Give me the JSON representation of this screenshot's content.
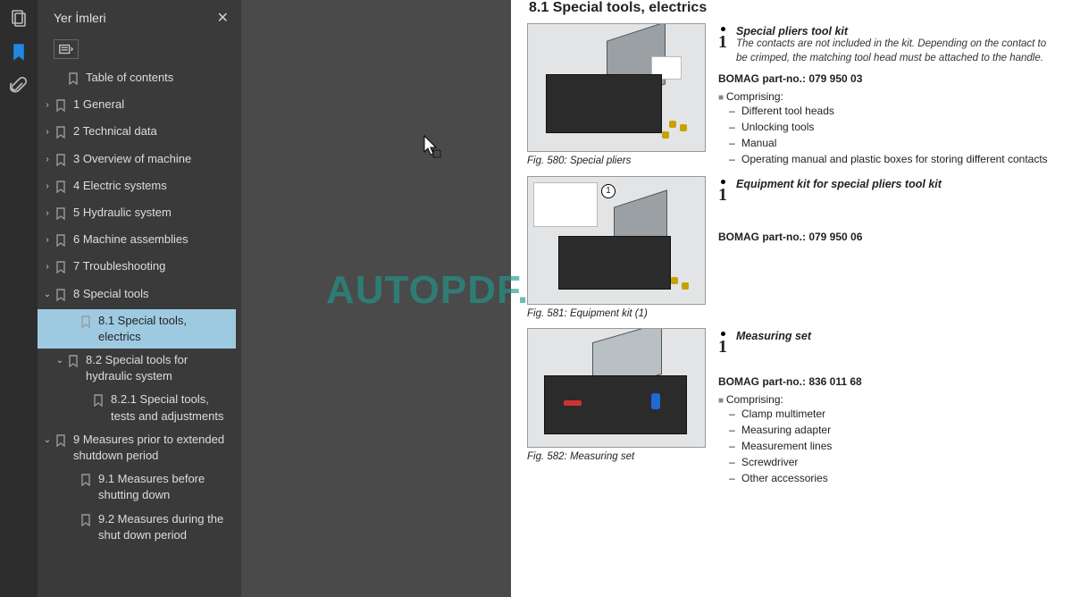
{
  "sidebar": {
    "title": "Yer İmleri",
    "bookmarks": [
      {
        "depth": 1,
        "chevron": "",
        "label": "Table of contents",
        "selected": false
      },
      {
        "depth": 0,
        "chevron": "›",
        "label": "1 General",
        "selected": false
      },
      {
        "depth": 0,
        "chevron": "›",
        "label": "2 Technical data",
        "selected": false
      },
      {
        "depth": 0,
        "chevron": "›",
        "label": "3 Overview of machine",
        "selected": false
      },
      {
        "depth": 0,
        "chevron": "›",
        "label": "4 Electric systems",
        "selected": false
      },
      {
        "depth": 0,
        "chevron": "›",
        "label": "5 Hydraulic system",
        "selected": false
      },
      {
        "depth": 0,
        "chevron": "›",
        "label": "6 Machine assemblies",
        "selected": false
      },
      {
        "depth": 0,
        "chevron": "›",
        "label": "7 Troubleshooting",
        "selected": false
      },
      {
        "depth": 0,
        "chevron": "⌄",
        "label": "8 Special tools",
        "selected": false
      },
      {
        "depth": 2,
        "chevron": "",
        "label": "8.1 Special tools, electrics",
        "selected": true
      },
      {
        "depth": 1,
        "chevron": "⌄",
        "label": "8.2 Special tools for hydraulic system",
        "selected": false
      },
      {
        "depth": 3,
        "chevron": "",
        "label": "8.2.1 Special tools, tests and adjustments",
        "selected": false
      },
      {
        "depth": 0,
        "chevron": "⌄",
        "label": "9 Measures prior to extended shutdown period",
        "selected": false
      },
      {
        "depth": 2,
        "chevron": "",
        "label": "9.1 Measures before shutting down",
        "selected": false
      },
      {
        "depth": 2,
        "chevron": "",
        "label": "9.2 Measures during the shut down period",
        "selected": false
      }
    ]
  },
  "watermark": "AUTOPDF.NET",
  "doc": {
    "heading": "8.1   Special tools, electrics",
    "sections": [
      {
        "fig_caption": "Fig.  580: Special pliers",
        "title": "Special pliers tool kit",
        "desc": "The contacts are not included in the kit. Depending on the contact to be crimped, the matching tool head must be attached to the handle.",
        "part_label": "BOMAG part-no.: 079 950 03",
        "comprise_label": "Comprising:",
        "items": [
          "Different tool heads",
          "Unlocking tools",
          "Manual",
          "Operating manual and plastic boxes for storing different contacts"
        ]
      },
      {
        "fig_caption": "Fig.  581: Equipment kit (1)",
        "title": "Equipment kit for special pliers tool kit",
        "desc": "",
        "part_label": "BOMAG part-no.: 079 950 06",
        "comprise_label": "",
        "items": []
      },
      {
        "fig_caption": "Fig.  582: Measuring set",
        "title": "Measuring set",
        "desc": "",
        "part_label": "BOMAG part-no.: 836 011 68",
        "comprise_label": "Comprising:",
        "items": [
          "Clamp multimeter",
          "Measuring adapter",
          "Measurement lines",
          "Screwdriver",
          "Other accessories"
        ]
      }
    ]
  },
  "colors": {
    "rail_bg": "#2d2d2d",
    "sidebar_bg": "#3a3a3a",
    "doc_bg": "#4a4a4a",
    "page_bg": "#ffffff",
    "selected_bg": "#9ecae1",
    "watermark": "rgba(32,150,140,0.65)",
    "active_icon": "#1e88e5"
  }
}
